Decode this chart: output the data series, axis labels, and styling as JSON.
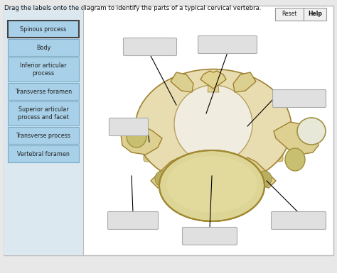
{
  "title": "Drag the labels onto the diagram to identify the parts of a typical cervical vertebra.",
  "bg_color": "#e8e8e8",
  "outer_bg": "#ffffff",
  "left_panel_color": "#dce8f0",
  "label_buttons": [
    "Spinous process",
    "Body",
    "Inferior articular\nprocess",
    "Transverse foramen",
    "Superior articular\nprocess and facet",
    "Transverse process",
    "Vertebral foramen"
  ],
  "button_bg": "#a8d0e8",
  "button_border_normal": "#78aac8",
  "first_button_border": "#444444",
  "button_text_color": "#222222",
  "empty_box_bg": "#e0e0e0",
  "empty_box_border": "#aaaaaa",
  "reset_help_bg": "#f0f0f0",
  "reset_help_border": "#999999",
  "bone_light": "#e8ddb0",
  "bone_mid": "#d4c070",
  "bone_dark": "#c0a850",
  "bone_shadow": "#b09040",
  "bone_edge": "#a08030",
  "foramen_color": "#e0e8c0",
  "body_color": "#ddd090"
}
